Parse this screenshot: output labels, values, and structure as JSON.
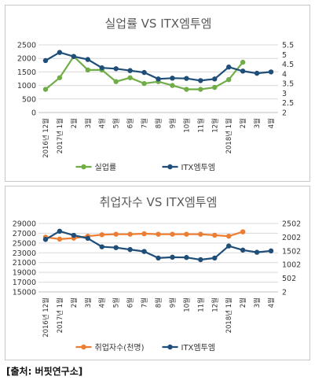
{
  "source_text": "[출처: 버핏연구소]",
  "chart_data": [
    {
      "type": "line",
      "title": "실업률 VS ITX엠투엠",
      "categories": [
        "2016년 12월",
        "2017년 1월",
        "2월",
        "3월",
        "4월",
        "5월",
        "6월",
        "7월",
        "8월",
        "9월",
        "10월",
        "11월",
        "12월",
        "2018년 1월",
        "2월",
        "3월",
        "4월"
      ],
      "y_left": {
        "ticks": [
          0,
          500,
          1000,
          1500,
          2000,
          2500
        ],
        "range": [
          0,
          2500
        ]
      },
      "y_right": {
        "ticks": [
          2,
          2.5,
          3,
          3.5,
          4,
          4.5,
          5,
          5.5
        ],
        "range": [
          2,
          5.5
        ]
      },
      "series": [
        {
          "name": "실업률",
          "axis": "right",
          "color": "#70ad47",
          "values": [
            3.2,
            3.8,
            4.9,
            4.2,
            4.2,
            3.6,
            3.8,
            3.5,
            3.6,
            3.4,
            3.2,
            3.2,
            3.3,
            3.7,
            4.6,
            null,
            null
          ]
        },
        {
          "name": "ITX엠투엠",
          "axis": "left",
          "color": "#1f4e79",
          "values": [
            1920,
            2220,
            2070,
            1960,
            1650,
            1620,
            1550,
            1480,
            1240,
            1270,
            1260,
            1180,
            1240,
            1680,
            1530,
            1450,
            1500
          ]
        }
      ],
      "legend": "bottom",
      "grid": true
    },
    {
      "type": "line",
      "title": "취업자수 VS ITX엠투엠",
      "categories": [
        "2016년 12월",
        "2017년 1월",
        "2월",
        "3월",
        "4월",
        "5월",
        "6월",
        "7월",
        "8월",
        "9월",
        "10월",
        "11월",
        "12월",
        "2018년 1월",
        "2월",
        "3월",
        "4월"
      ],
      "y_left": {
        "ticks": [
          15000,
          17000,
          19000,
          21000,
          23000,
          25000,
          27000,
          29000
        ],
        "range": [
          15000,
          29000
        ]
      },
      "y_right": {
        "ticks": [
          2,
          502,
          1002,
          1502,
          2002,
          2502
        ],
        "range": [
          2,
          2502
        ]
      },
      "series": [
        {
          "name": "취업자수(천명)",
          "axis": "left",
          "color": "#ed7d31",
          "values": [
            26200,
            25800,
            26000,
            26400,
            26700,
            26800,
            26800,
            26900,
            26800,
            26800,
            26800,
            26800,
            26600,
            26400,
            27300,
            null,
            null
          ]
        },
        {
          "name": "ITX엠투엠",
          "axis": "right",
          "color": "#1f4e79",
          "values": [
            1920,
            2220,
            2070,
            1960,
            1650,
            1620,
            1550,
            1480,
            1240,
            1270,
            1260,
            1180,
            1240,
            1680,
            1530,
            1450,
            1500
          ]
        }
      ],
      "legend": "bottom",
      "grid": true
    }
  ]
}
